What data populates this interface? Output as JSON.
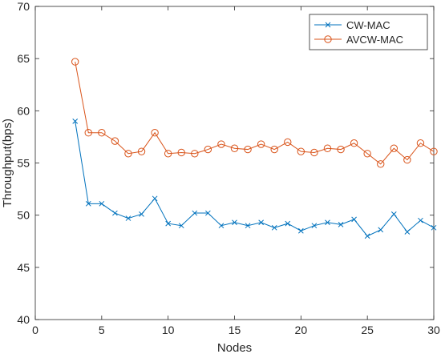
{
  "chart_data": {
    "type": "line",
    "title": "",
    "xlabel": "Nodes",
    "ylabel": "Throughput(bps)",
    "xlim": [
      0,
      30
    ],
    "ylim": [
      40,
      70
    ],
    "xticks": [
      0,
      5,
      10,
      15,
      20,
      25,
      30
    ],
    "yticks": [
      40,
      45,
      50,
      55,
      60,
      65,
      70
    ],
    "grid": false,
    "legend_position": "top-right",
    "x": [
      3,
      4,
      5,
      6,
      7,
      8,
      9,
      10,
      11,
      12,
      13,
      14,
      15,
      16,
      17,
      18,
      19,
      20,
      21,
      22,
      23,
      24,
      25,
      26,
      27,
      28,
      29,
      30
    ],
    "series": [
      {
        "name": "CW-MAC",
        "color": "#0072BD",
        "marker": "x",
        "values": [
          59.0,
          51.1,
          51.1,
          50.2,
          49.7,
          50.1,
          51.6,
          49.2,
          49.0,
          50.2,
          50.2,
          49.0,
          49.3,
          49.0,
          49.3,
          48.8,
          49.2,
          48.5,
          49.0,
          49.3,
          49.1,
          49.6,
          48.0,
          48.6,
          50.1,
          48.4,
          49.5,
          48.8
        ]
      },
      {
        "name": "AVCW-MAC",
        "color": "#D95319",
        "marker": "o",
        "values": [
          64.7,
          57.9,
          57.9,
          57.1,
          55.9,
          56.1,
          57.9,
          55.9,
          56.0,
          55.9,
          56.3,
          56.8,
          56.4,
          56.3,
          56.8,
          56.3,
          57.0,
          56.1,
          56.0,
          56.4,
          56.3,
          56.9,
          55.9,
          54.9,
          56.4,
          55.3,
          56.9,
          56.1
        ]
      }
    ]
  }
}
